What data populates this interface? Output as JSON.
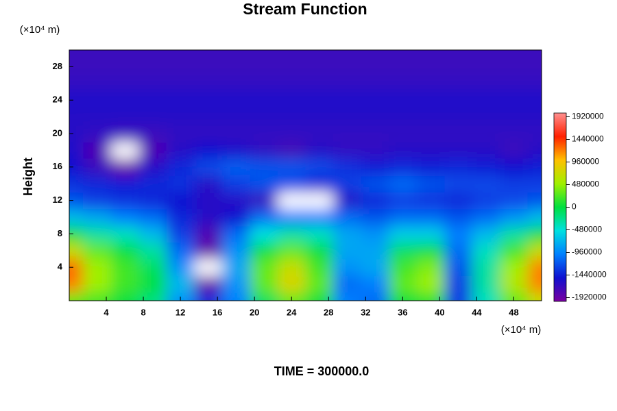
{
  "chart_data": {
    "type": "contour",
    "title": "Stream Function",
    "ylabel": "Height",
    "y_unit": "(×10⁴ m)",
    "x_unit": "(×10⁴ m)",
    "annotation": "TIME = 300000.0",
    "xlim": [
      0,
      51
    ],
    "ylim": [
      0,
      30
    ],
    "xticks": [
      4,
      8,
      12,
      16,
      20,
      24,
      28,
      32,
      36,
      40,
      44,
      48
    ],
    "yticks": [
      4,
      8,
      12,
      16,
      20,
      24,
      28
    ],
    "clim": [
      -2000000,
      2000000
    ],
    "cticks": [
      1920000,
      1440000,
      960000,
      480000,
      0,
      -480000,
      -960000,
      -1440000,
      -1920000
    ],
    "colormap": [
      "#7a00a0",
      "#1010d0",
      "#0080ff",
      "#00e0e0",
      "#00e040",
      "#a0f000",
      "#ffc000",
      "#ff2000",
      "#ff9090"
    ],
    "below_color": "#ffffff",
    "x": [
      0,
      3,
      6,
      9,
      12,
      15,
      18,
      21,
      24,
      27,
      30,
      33,
      36,
      39,
      42,
      45,
      48,
      51
    ],
    "y": [
      0,
      2,
      4,
      6,
      8,
      10,
      12,
      14,
      16,
      18,
      20,
      22,
      24,
      26,
      28,
      30
    ],
    "z": [
      [
        300000,
        200000,
        0,
        -200000,
        -900000,
        -1400000,
        -1000000,
        -100000,
        300000,
        0,
        -1000000,
        -1100000,
        0,
        100000,
        -1300000,
        -400000,
        300000,
        700000
      ],
      [
        1200000,
        500000,
        200000,
        0,
        -700000,
        -1900000,
        -900000,
        300000,
        800000,
        300000,
        -1100000,
        -1000000,
        300000,
        500000,
        -1300000,
        -300000,
        600000,
        1200000
      ],
      [
        1300000,
        500000,
        200000,
        -100000,
        -900000,
        -2100000,
        -800000,
        300000,
        700000,
        200000,
        -900000,
        -800000,
        200000,
        400000,
        -1200000,
        -300000,
        500000,
        1200000
      ],
      [
        700000,
        300000,
        0,
        -300000,
        -1100000,
        -1900000,
        -900000,
        0,
        300000,
        0,
        -800000,
        -800000,
        -100000,
        0,
        -1100000,
        -400000,
        200000,
        700000
      ],
      [
        0,
        -300000,
        -400000,
        -700000,
        -1300000,
        -1800000,
        -1100000,
        -500000,
        -300000,
        -400000,
        -800000,
        -900000,
        -600000,
        -600000,
        -1000000,
        -700000,
        -300000,
        0
      ],
      [
        -700000,
        -800000,
        -1000000,
        -1100000,
        -1400000,
        -1600000,
        -1500000,
        -1100000,
        -1000000,
        -1000000,
        -1100000,
        -1200000,
        -1100000,
        -1100000,
        -1200000,
        -1100000,
        -900000,
        -700000
      ],
      [
        -1200000,
        -1300000,
        -1350000,
        -1400000,
        -1500000,
        -1600000,
        -1600000,
        -1700000,
        -2100000,
        -2050000,
        -1600000,
        -1400000,
        -1300000,
        -1350000,
        -1400000,
        -1300000,
        -1250000,
        -1200000
      ],
      [
        -1350000,
        -1400000,
        -1450000,
        -1400000,
        -1350000,
        -1600000,
        -1300000,
        -1200000,
        -1250000,
        -1400000,
        -1300000,
        -1200000,
        -1100000,
        -1200000,
        -1250000,
        -1250000,
        -1300000,
        -1300000
      ],
      [
        -1500000,
        -1700000,
        -1900000,
        -1600000,
        -1400000,
        -1250000,
        -1150000,
        -1200000,
        -1200000,
        -1250000,
        -1350000,
        -1450000,
        -1400000,
        -1450000,
        -1400000,
        -1450000,
        -1500000,
        -1450000
      ],
      [
        -1550000,
        -1800000,
        -2050000,
        -1800000,
        -1600000,
        -1500000,
        -1550000,
        -1650000,
        -1750000,
        -1600000,
        -1650000,
        -1650000,
        -1600000,
        -1600000,
        -1600000,
        -1600000,
        -1700000,
        -1600000
      ],
      [
        -1600000,
        -1650000,
        -1700000,
        -1700000,
        -1650000,
        -1650000,
        -1650000,
        -1650000,
        -1650000,
        -1650000,
        -1650000,
        -1650000,
        -1650000,
        -1650000,
        -1650000,
        -1650000,
        -1650000,
        -1650000
      ],
      [
        -1600000,
        -1600000,
        -1600000,
        -1600000,
        -1600000,
        -1600000,
        -1600000,
        -1600000,
        -1600000,
        -1600000,
        -1600000,
        -1600000,
        -1600000,
        -1600000,
        -1600000,
        -1600000,
        -1600000,
        -1600000
      ],
      [
        -1550000,
        -1550000,
        -1550000,
        -1550000,
        -1550000,
        -1550000,
        -1550000,
        -1550000,
        -1550000,
        -1550000,
        -1550000,
        -1550000,
        -1550000,
        -1550000,
        -1550000,
        -1550000,
        -1550000,
        -1550000
      ],
      [
        -1650000,
        -1650000,
        -1650000,
        -1650000,
        -1650000,
        -1650000,
        -1650000,
        -1650000,
        -1650000,
        -1650000,
        -1650000,
        -1650000,
        -1650000,
        -1650000,
        -1650000,
        -1650000,
        -1650000,
        -1650000
      ],
      [
        -1700000,
        -1700000,
        -1700000,
        -1700000,
        -1700000,
        -1700000,
        -1700000,
        -1700000,
        -1700000,
        -1700000,
        -1700000,
        -1700000,
        -1700000,
        -1700000,
        -1700000,
        -1700000,
        -1700000,
        -1700000
      ],
      [
        -1700000,
        -1700000,
        -1700000,
        -1700000,
        -1700000,
        -1700000,
        -1700000,
        -1700000,
        -1700000,
        -1700000,
        -1700000,
        -1700000,
        -1700000,
        -1700000,
        -1700000,
        -1700000,
        -1700000,
        -1700000
      ]
    ]
  }
}
